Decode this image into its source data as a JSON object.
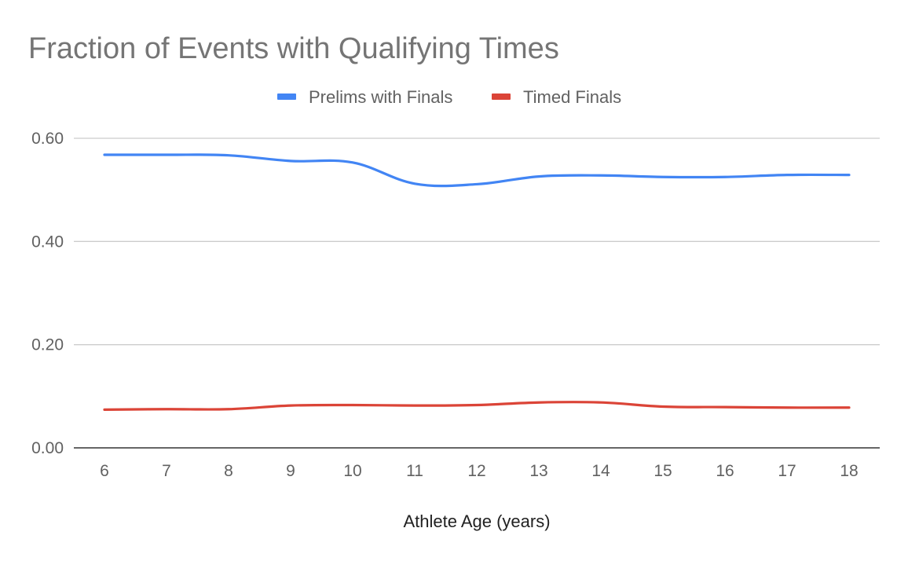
{
  "chart_data": {
    "type": "line",
    "title": "Fraction of Events with Qualifying Times",
    "xlabel": "Athlete Age (years)",
    "ylabel": "",
    "x": [
      6,
      7,
      8,
      9,
      10,
      11,
      12,
      13,
      14,
      15,
      16,
      17,
      18
    ],
    "x_tick_labels": [
      "6",
      "7",
      "8",
      "9",
      "10",
      "11",
      "12",
      "13",
      "14",
      "15",
      "16",
      "17",
      "18"
    ],
    "ylim": [
      0,
      0.6
    ],
    "y_ticks": [
      0,
      0.2,
      0.4,
      0.6
    ],
    "y_tick_labels": [
      "0.00",
      "0.20",
      "0.40",
      "0.60"
    ],
    "grid": true,
    "smooth": true,
    "legend_position": "top",
    "series": [
      {
        "name": "Prelims with Finals",
        "color": "#4285F4",
        "values": [
          0.568,
          0.568,
          0.567,
          0.556,
          0.553,
          0.512,
          0.511,
          0.526,
          0.528,
          0.525,
          0.525,
          0.529,
          0.529
        ]
      },
      {
        "name": "Timed Finals",
        "color": "#DB4437",
        "values": [
          0.074,
          0.075,
          0.075,
          0.082,
          0.083,
          0.082,
          0.083,
          0.088,
          0.088,
          0.08,
          0.079,
          0.078,
          0.078
        ]
      }
    ]
  }
}
